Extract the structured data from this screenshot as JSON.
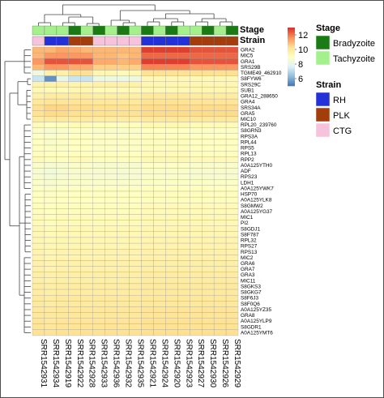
{
  "chart_data": {
    "type": "heatmap",
    "columns": [
      "SRR1542931",
      "SRR1542934",
      "SRR1542919",
      "SRR1542922",
      "SRR1542928",
      "SRR1542933",
      "SRR1542936",
      "SRR1542932",
      "SRR1542935",
      "SRR1542921",
      "SRR1542924",
      "SRR1542920",
      "SRR1542923",
      "SRR1542927",
      "SRR1542930",
      "SRR1542926",
      "SRR1542929"
    ],
    "rows": [
      "GRA2",
      "MIC5",
      "GRA1",
      "SRS29B",
      "TGME49_462910",
      "S8FYW6",
      "SRS29C",
      "SUB1",
      "GRA12_288650",
      "GRA4",
      "SRS34A",
      "GRA5",
      "MIC10",
      "RPL20_239760",
      "S8GRN3",
      "RPS3A",
      "RPL44",
      "RPS5",
      "RPL13",
      "RPP2",
      "A0A125YTH0",
      "ADF",
      "RPS23",
      "LDH1",
      "A0A125YWK7",
      "HSP70",
      "A0A125YLK8",
      "S8GMW2",
      "A0A125YG37",
      "MIC1",
      "PI2",
      "S8GDJ1",
      "S8F787",
      "RPL32",
      "RPS27",
      "RPS13",
      "MIC2",
      "GRA6",
      "GRA7",
      "GRA3",
      "MIC11",
      "S8GKS3",
      "S8GKG7",
      "S8F6J3",
      "S8F0Q6",
      "A0A125YZ35",
      "GRA8",
      "A0A125YLP9",
      "S8GDR1",
      "A0A125YMT6"
    ],
    "annotations": {
      "Stage": {
        "legend_title": "Stage",
        "levels": [
          {
            "label": "Bradyzoite",
            "color": "#1a7a14"
          },
          {
            "label": "Tachyzoite",
            "color": "#a4f08c"
          }
        ],
        "values": [
          "Tachyzoite",
          "Tachyzoite",
          "Tachyzoite",
          "Bradyzoite",
          "Tachyzoite",
          "Bradyzoite",
          "Tachyzoite",
          "Bradyzoite",
          "Tachyzoite",
          "Bradyzoite",
          "Tachyzoite",
          "Bradyzoite",
          "Tachyzoite",
          "Tachyzoite",
          "Bradyzoite",
          "Tachyzoite",
          "Bradyzoite"
        ]
      },
      "Strain": {
        "legend_title": "Strain",
        "levels": [
          {
            "label": "RH",
            "color": "#2531d8"
          },
          {
            "label": "PLK",
            "color": "#a33d0c"
          },
          {
            "label": "CTG",
            "color": "#f6c2dc"
          }
        ],
        "values": [
          "CTG",
          "RH",
          "RH",
          "PLK",
          "PLK",
          "CTG",
          "CTG",
          "CTG",
          "CTG",
          "RH",
          "RH",
          "RH",
          "RH",
          "PLK",
          "PLK",
          "PLK",
          "PLK"
        ]
      }
    },
    "color_scale": {
      "ticks": [
        6,
        8,
        10,
        12
      ],
      "range": [
        5,
        13
      ],
      "colors": [
        "#4575b4",
        "#91bfdb",
        "#e0f3f8",
        "#ffffbf",
        "#fee090",
        "#fc8d59",
        "#d73027"
      ]
    },
    "values": [
      [
        11,
        11,
        11.3,
        11.2,
        11,
        11,
        11,
        11,
        11,
        12.8,
        12.8,
        12.8,
        12.8,
        12.5,
        12.5,
        12.5,
        12.5
      ],
      [
        11,
        11.5,
        11.5,
        11.5,
        11.5,
        11,
        11,
        10.8,
        11,
        12.2,
        12.2,
        12.2,
        12.2,
        12.2,
        12.2,
        12.2,
        12.2
      ],
      [
        11.5,
        12.5,
        12.5,
        12.5,
        12.5,
        11.2,
        11.2,
        11,
        11.2,
        12.8,
        12.8,
        12.8,
        12.8,
        12.5,
        12.5,
        12.5,
        12.5
      ],
      [
        11,
        11.5,
        11.5,
        11.2,
        11.2,
        10.6,
        10.6,
        10.6,
        10.6,
        11.8,
        11.8,
        11.8,
        11.8,
        11.5,
        11.5,
        11.5,
        11.5
      ],
      [
        8.3,
        9.6,
        9.6,
        10.3,
        10.3,
        9.4,
        9.4,
        9.2,
        9.4,
        10.2,
        10.2,
        10.2,
        10.2,
        10.3,
        10.3,
        10.3,
        10.3
      ],
      [
        7.3,
        5.5,
        8,
        7.3,
        7.3,
        8.2,
        8.2,
        8.2,
        8.2,
        9.3,
        9.3,
        9.3,
        9.3,
        9.3,
        9.3,
        9.3,
        9.3
      ],
      [
        9.5,
        9.6,
        9.6,
        9.5,
        9.5,
        9.6,
        9.6,
        9.6,
        9.6,
        9.4,
        9.4,
        9.4,
        9.4,
        9.4,
        9.4,
        9.4,
        9.4
      ],
      [
        9.3,
        9.2,
        9.2,
        9.4,
        9.4,
        9.2,
        9.2,
        9.2,
        9.2,
        9.3,
        9.3,
        9.3,
        9.3,
        9.4,
        9.4,
        9.4,
        9.4
      ],
      [
        9.6,
        9.8,
        9.8,
        9.8,
        9.8,
        9.7,
        9.7,
        9.7,
        9.7,
        9.9,
        9.9,
        9.9,
        9.9,
        9.8,
        9.8,
        9.8,
        9.8
      ],
      [
        10,
        10.1,
        10.1,
        10.1,
        10.1,
        10,
        10,
        10,
        10,
        10.2,
        10.2,
        10.2,
        10.2,
        10.1,
        10.1,
        10.1,
        10.1
      ],
      [
        10.3,
        10.5,
        10.5,
        10.4,
        10.4,
        10.3,
        10.3,
        10.3,
        10.3,
        10.4,
        10.4,
        10.4,
        10.4,
        10.4,
        10.4,
        10.4,
        10.4
      ],
      [
        10.2,
        10.4,
        10.4,
        10.3,
        10.3,
        10.2,
        10.2,
        10.2,
        10.2,
        10.4,
        10.4,
        10.4,
        10.4,
        10.4,
        10.4,
        10.4,
        10.4
      ],
      [
        9.8,
        9.9,
        9.9,
        9.9,
        9.9,
        9.8,
        9.8,
        9.8,
        9.8,
        10,
        10,
        10,
        10,
        10,
        10,
        10,
        10
      ],
      [
        9.2,
        9,
        9.1,
        9.2,
        9.2,
        9.1,
        9.1,
        9.1,
        9.1,
        9.3,
        9.3,
        9.3,
        9.3,
        9.2,
        9.2,
        9.2,
        9.2
      ],
      [
        8.8,
        8.6,
        8.8,
        8.9,
        8.9,
        8.8,
        8.8,
        8.8,
        8.8,
        9,
        9,
        9,
        9,
        8.9,
        8.9,
        8.9,
        8.9
      ],
      [
        8.9,
        8.8,
        8.9,
        9,
        9,
        8.9,
        8.9,
        8.9,
        8.9,
        9.1,
        9.1,
        9.1,
        9.1,
        9,
        9,
        9,
        9
      ],
      [
        9,
        8.8,
        8.9,
        9,
        9,
        8.9,
        8.9,
        8.9,
        8.9,
        9.1,
        9.1,
        9.1,
        9.1,
        9,
        9,
        9,
        9
      ],
      [
        9,
        8.9,
        8.9,
        9,
        9,
        8.9,
        8.9,
        8.9,
        8.9,
        9.1,
        9.1,
        9.1,
        9.1,
        9,
        9,
        9,
        9
      ],
      [
        9.1,
        9,
        9,
        9.1,
        9.1,
        9,
        9,
        9,
        9,
        9.2,
        9.2,
        9.2,
        9.2,
        9.1,
        9.1,
        9.1,
        9.1
      ],
      [
        9.2,
        9.1,
        9.1,
        9.2,
        9.2,
        9.1,
        9.1,
        9.1,
        9.1,
        9.3,
        9.3,
        9.3,
        9.3,
        9.2,
        9.2,
        9.2,
        9.2
      ],
      [
        8.8,
        8.6,
        8.7,
        8.8,
        8.8,
        8.7,
        8.7,
        8.7,
        8.7,
        8.9,
        8.9,
        8.9,
        8.9,
        8.8,
        8.8,
        8.8,
        8.8
      ],
      [
        8.6,
        8.4,
        8.6,
        8.7,
        8.7,
        8.6,
        8.6,
        8.6,
        8.6,
        8.8,
        8.8,
        8.8,
        8.8,
        8.7,
        8.7,
        8.7,
        8.7
      ],
      [
        8.7,
        8.5,
        8.6,
        8.7,
        8.7,
        8.6,
        8.6,
        8.6,
        8.6,
        8.8,
        8.8,
        8.8,
        8.8,
        8.7,
        8.7,
        8.7,
        8.7
      ],
      [
        8.8,
        8.7,
        8.8,
        8.8,
        8.8,
        8.8,
        8.8,
        8.8,
        8.8,
        8.9,
        8.9,
        8.9,
        8.9,
        8.9,
        8.9,
        8.9,
        8.9
      ],
      [
        8.9,
        8.8,
        8.9,
        8.9,
        8.9,
        8.9,
        8.9,
        8.9,
        8.9,
        9,
        9,
        9,
        9,
        9,
        9,
        9,
        9
      ],
      [
        9,
        8.9,
        9,
        9,
        9,
        9,
        9,
        9,
        9,
        9.1,
        9.1,
        9.1,
        9.1,
        9.1,
        9.1,
        9.1,
        9.1
      ],
      [
        9,
        8.9,
        9,
        9,
        9,
        9,
        9,
        9,
        9,
        9.1,
        9.1,
        9.1,
        9.1,
        9.1,
        9.1,
        9.1,
        9.1
      ],
      [
        9.1,
        9,
        9.1,
        9.1,
        9.1,
        9.1,
        9.1,
        9.1,
        9.1,
        9.2,
        9.2,
        9.2,
        9.2,
        9.2,
        9.2,
        9.2,
        9.2
      ],
      [
        9.1,
        9,
        9.1,
        9.1,
        9.1,
        9.1,
        9.1,
        9.1,
        9.1,
        9.2,
        9.2,
        9.2,
        9.2,
        9.2,
        9.2,
        9.2,
        9.2
      ],
      [
        9.2,
        9.1,
        9.2,
        9.2,
        9.2,
        9.2,
        9.2,
        9.2,
        9.2,
        9.3,
        9.3,
        9.3,
        9.3,
        9.3,
        9.3,
        9.3,
        9.3
      ],
      [
        9.2,
        9.1,
        9.2,
        9.2,
        9.2,
        9.2,
        9.2,
        9.2,
        9.2,
        9.3,
        9.3,
        9.3,
        9.3,
        9.3,
        9.3,
        9.3,
        9.3
      ],
      [
        9.3,
        9.2,
        9.3,
        9.3,
        9.3,
        9.3,
        9.3,
        9.3,
        9.3,
        9.4,
        9.4,
        9.4,
        9.4,
        9.4,
        9.4,
        9.4,
        9.4
      ],
      [
        9.3,
        9.2,
        9.3,
        9.3,
        9.3,
        9.3,
        9.3,
        9.3,
        9.3,
        9.4,
        9.4,
        9.4,
        9.4,
        9.4,
        9.4,
        9.4,
        9.4
      ],
      [
        9.4,
        9.3,
        9.4,
        9.4,
        9.4,
        9.4,
        9.4,
        9.4,
        9.4,
        9.5,
        9.5,
        9.5,
        9.5,
        9.5,
        9.5,
        9.5,
        9.5
      ],
      [
        9.4,
        9.3,
        9.4,
        9.4,
        9.4,
        9.4,
        9.4,
        9.4,
        9.4,
        9.5,
        9.5,
        9.5,
        9.5,
        9.5,
        9.5,
        9.5,
        9.5
      ],
      [
        9.5,
        9.4,
        9.5,
        9.5,
        9.5,
        9.5,
        9.5,
        9.5,
        9.5,
        9.6,
        9.6,
        9.6,
        9.6,
        9.6,
        9.6,
        9.6,
        9.6
      ],
      [
        9.5,
        9.4,
        9.5,
        9.5,
        9.5,
        9.5,
        9.5,
        9.5,
        9.5,
        9.6,
        9.6,
        9.6,
        9.6,
        9.6,
        9.6,
        9.6,
        9.6
      ],
      [
        9.6,
        9.5,
        9.6,
        9.6,
        9.6,
        9.6,
        9.6,
        9.6,
        9.6,
        9.7,
        9.7,
        9.7,
        9.7,
        9.7,
        9.7,
        9.7,
        9.7
      ],
      [
        9.6,
        9.5,
        9.6,
        9.6,
        9.6,
        9.6,
        9.6,
        9.6,
        9.6,
        9.7,
        9.7,
        9.7,
        9.7,
        9.7,
        9.7,
        9.7,
        9.7
      ],
      [
        9.7,
        9.6,
        9.7,
        9.7,
        9.7,
        9.7,
        9.7,
        9.7,
        9.7,
        9.8,
        9.8,
        9.8,
        9.8,
        9.8,
        9.8,
        9.8,
        9.8
      ],
      [
        9.7,
        9.6,
        9.7,
        9.7,
        9.7,
        9.7,
        9.7,
        9.7,
        9.7,
        9.8,
        9.8,
        9.8,
        9.8,
        9.8,
        9.8,
        9.8,
        9.8
      ],
      [
        9.8,
        9.7,
        9.8,
        9.8,
        9.8,
        9.8,
        9.8,
        9.8,
        9.8,
        9.9,
        9.9,
        9.9,
        9.9,
        9.9,
        9.9,
        9.9,
        9.9
      ],
      [
        9.8,
        9.7,
        9.8,
        9.8,
        9.8,
        9.8,
        9.8,
        9.8,
        9.8,
        9.9,
        9.9,
        9.9,
        9.9,
        9.9,
        9.9,
        9.9,
        9.9
      ],
      [
        9.9,
        9.8,
        9.9,
        9.9,
        9.9,
        9.9,
        9.9,
        9.9,
        9.9,
        10,
        10,
        10,
        10,
        10,
        10,
        10,
        10
      ],
      [
        9.9,
        9.8,
        9.9,
        9.9,
        9.9,
        9.9,
        9.9,
        9.9,
        9.9,
        10,
        10,
        10,
        10,
        10,
        10,
        10,
        10
      ],
      [
        10,
        9.9,
        10,
        10,
        10,
        10,
        10,
        10,
        10,
        10.1,
        10.1,
        10.1,
        10.1,
        10.1,
        10.1,
        10.1,
        10.1
      ],
      [
        10,
        9.9,
        10,
        10,
        10,
        10,
        10,
        10,
        10,
        10.1,
        10.1,
        10.1,
        10.1,
        10.1,
        10.1,
        10.1,
        10.1
      ],
      [
        10.1,
        10,
        10.1,
        10.1,
        10.1,
        10.1,
        10.1,
        10.1,
        10.1,
        10.2,
        10.2,
        10.2,
        10.2,
        10.2,
        10.2,
        10.2,
        10.2
      ],
      [
        10.1,
        10,
        10.1,
        10.1,
        10.1,
        10.1,
        10.1,
        10.1,
        10.1,
        10.2,
        10.2,
        10.2,
        10.2,
        10.2,
        10.2,
        10.2,
        10.2
      ],
      [
        10.2,
        10.1,
        10.2,
        10.2,
        10.2,
        10.2,
        10.2,
        10.2,
        10.2,
        10.3,
        10.3,
        10.3,
        10.3,
        10.3,
        10.3,
        10.3,
        10.3
      ]
    ]
  }
}
